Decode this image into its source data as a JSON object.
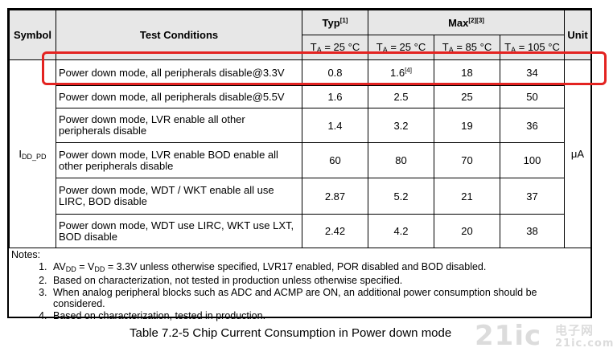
{
  "table": {
    "headers": {
      "symbol": "Symbol",
      "conditions": "Test Conditions",
      "typ": "Typ",
      "typ_note": "[1]",
      "max": "Max",
      "max_note": "[2][3]",
      "unit": "Unit",
      "ta_prefix": "T",
      "ta_sub": "A",
      "temp_typ": " = 25 °C",
      "temp_max_25": " = 25 °C",
      "temp_max_85": " = 85 °C",
      "temp_max_105": " = 105 °C"
    },
    "symbol_main": "I",
    "symbol_sub": "DD_PD",
    "unit": "μA",
    "rows": [
      {
        "condition": "Power down mode, all peripherals disable@3.3V",
        "typ": "0.8",
        "max25": "1.6",
        "max25_note": "[4]",
        "max85": "18",
        "max105": "34"
      },
      {
        "condition": "Power down mode, all peripherals disable@5.5V",
        "typ": "1.6",
        "max25": "2.5",
        "max25_note": "",
        "max85": "25",
        "max105": "50"
      },
      {
        "condition": "Power down mode, LVR enable all other peripherals disable",
        "typ": "1.4",
        "max25": "3.2",
        "max25_note": "",
        "max85": "19",
        "max105": "36"
      },
      {
        "condition": "Power down mode, LVR enable BOD enable all other peripherals disable",
        "typ": "60",
        "max25": "80",
        "max25_note": "",
        "max85": "70",
        "max105": "100"
      },
      {
        "condition": "Power down mode, WDT / WKT enable all use LIRC, BOD disable",
        "typ": "2.87",
        "max25": "5.2",
        "max25_note": "",
        "max85": "21",
        "max105": "37"
      },
      {
        "condition": "Power down mode, WDT use LIRC, WKT use LXT, BOD disable",
        "typ": "2.42",
        "max25": "4.2",
        "max25_note": "",
        "max85": "20",
        "max105": "38"
      }
    ]
  },
  "notes": {
    "title": "Notes:",
    "note1_av": "AV",
    "note1_av_sub": "DD",
    "note1_eq": " = V",
    "note1_v_sub": "DD",
    "note1_rest": " = 3.3V unless otherwise specified, LVR17 enabled, POR disabled and BOD disabled.",
    "note2": "Based on characterization, not tested in production unless otherwise specified.",
    "note3": "When analog peripheral blocks such as ADC and ACMP are ON, an additional power consumption should be considered.",
    "note4": "Based on characterization, tested in production."
  },
  "caption": "Table 7.2-5 Chip Current Consumption in Power down mode",
  "watermark": {
    "logo": "21ic",
    "cn": "电子网",
    "site": "21ic.com"
  },
  "highlight_color": "#e32321"
}
